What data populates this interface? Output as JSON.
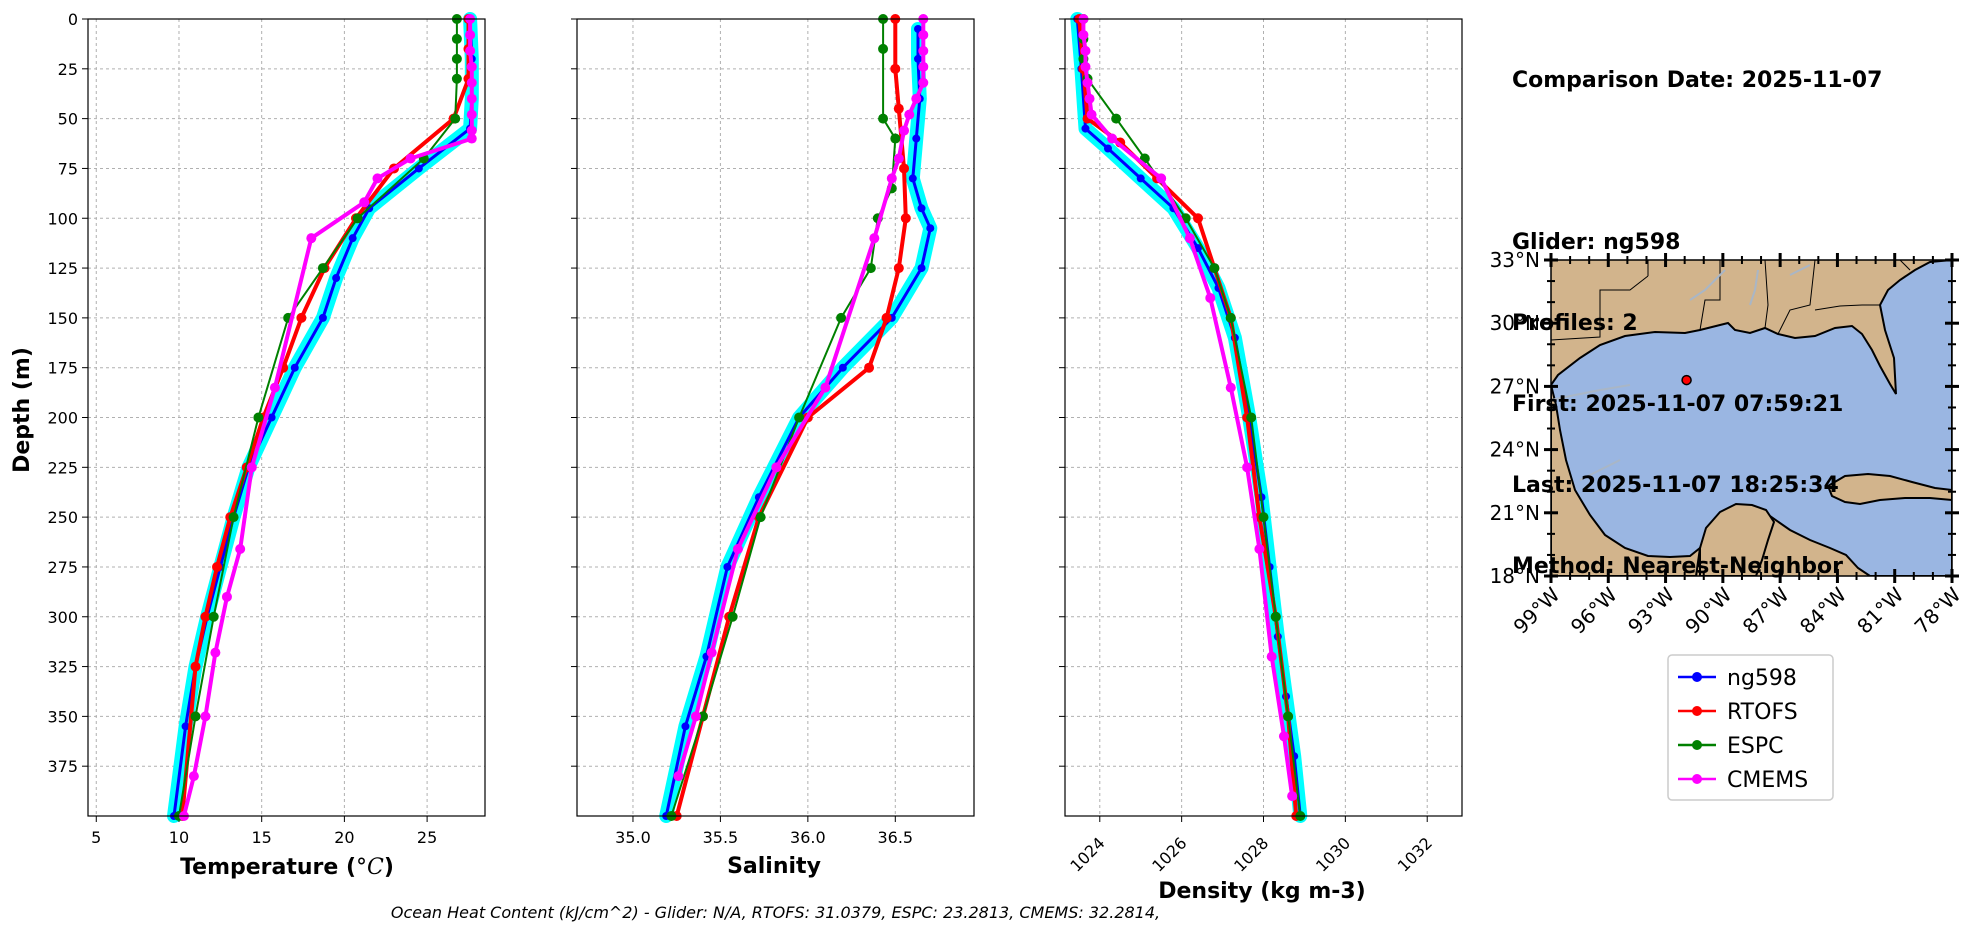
{
  "info": {
    "comparison_date": "Comparison Date: 2025-11-07",
    "glider": "Glider: ng598",
    "profiles": "Profiles: 2",
    "first": "First: 2025-11-07 07:59:21",
    "last": "Last: 2025-11-07 18:25:34",
    "method": "Method: Nearest-Neighbor"
  },
  "footer": "Ocean Heat Content (kJ/cm^2) - Glider: N/A,  RTOFS: 31.0379,  ESPC: 23.2813,  CMEMS: 32.2814,",
  "colors": {
    "ng598": "#0000ff",
    "ng598_spread": "#00ffff",
    "RTOFS": "#ff0000",
    "ESPC": "#008000",
    "CMEMS": "#ff00ff",
    "land": "#d2b48c",
    "ocean": "#9ab6e2"
  },
  "legend": [
    "ng598",
    "RTOFS",
    "ESPC",
    "CMEMS"
  ],
  "chart_data": [
    {
      "type": "line",
      "xlabel_main": "Temperature (",
      "xlabel_unit": "°C",
      "xlabel_end": ")",
      "ylabel": "Depth (m)",
      "xlim": [
        4.5,
        28.5
      ],
      "ylim": [
        400,
        0
      ],
      "xticks": [
        5,
        10,
        15,
        20,
        25
      ],
      "yticks": [
        0,
        25,
        50,
        75,
        100,
        125,
        150,
        175,
        200,
        225,
        250,
        275,
        300,
        325,
        350,
        375
      ],
      "grid": true,
      "series": [
        {
          "name": "ng598",
          "x": [
            27.6,
            27.7,
            27.7,
            27.6,
            24.5,
            21.5,
            20.5,
            19.5,
            18.7,
            17.0,
            15.6,
            14.2,
            13.3,
            12.5,
            11.7,
            11.0,
            10.4,
            9.7
          ],
          "y": [
            0,
            20,
            40,
            55,
            75,
            95,
            110,
            130,
            150,
            175,
            200,
            225,
            250,
            275,
            300,
            325,
            355,
            400
          ]
        },
        {
          "name": "RTOFS",
          "x": [
            27.5,
            27.5,
            27.5,
            26.6,
            23.0,
            20.7,
            18.8,
            17.4,
            16.3,
            15.1,
            14.1,
            13.1,
            12.3,
            11.6,
            11.0,
            10.2
          ],
          "y": [
            0,
            15,
            30,
            50,
            75,
            100,
            125,
            150,
            175,
            200,
            225,
            250,
            275,
            300,
            325,
            400
          ]
        },
        {
          "name": "ESPC",
          "x": [
            26.8,
            26.8,
            26.8,
            26.8,
            26.7,
            24.8,
            20.8,
            18.7,
            16.6,
            14.8,
            13.3,
            12.1,
            11.0,
            10.0
          ],
          "y": [
            0,
            10,
            20,
            30,
            50,
            70,
            100,
            125,
            150,
            200,
            250,
            300,
            350,
            400
          ]
        },
        {
          "name": "CMEMS",
          "x": [
            27.6,
            27.6,
            27.6,
            27.7,
            27.7,
            27.7,
            27.7,
            27.7,
            27.7,
            24.0,
            22.0,
            21.2,
            18.0,
            15.8,
            14.4,
            13.7,
            12.9,
            12.2,
            11.6,
            10.9,
            10.3
          ],
          "y": [
            0,
            8,
            16,
            24,
            32,
            40,
            48,
            56,
            60,
            70,
            80,
            92,
            110,
            185,
            225,
            266,
            290,
            318,
            350,
            380,
            400
          ]
        }
      ]
    },
    {
      "type": "line",
      "xlabel": "Salinity",
      "xlim": [
        34.68,
        36.95
      ],
      "ylim": [
        400,
        0
      ],
      "xticks": [
        35.0,
        35.5,
        36.0,
        36.5
      ],
      "xticklabels": [
        "35.0",
        "35.5",
        "36.0",
        "36.5"
      ],
      "grid": true,
      "series": [
        {
          "name": "ng598",
          "x": [
            36.63,
            36.63,
            36.64,
            36.62,
            36.6,
            36.65,
            36.7,
            36.65,
            36.48,
            36.2,
            35.95,
            35.72,
            35.54,
            35.42,
            35.3,
            35.19
          ],
          "y": [
            5,
            20,
            40,
            60,
            80,
            95,
            105,
            125,
            150,
            175,
            200,
            240,
            275,
            320,
            355,
            400
          ]
        },
        {
          "name": "RTOFS",
          "x": [
            36.5,
            36.5,
            36.52,
            36.55,
            36.56,
            36.52,
            36.45,
            36.35,
            36.0,
            35.72,
            35.55,
            35.4,
            35.25
          ],
          "y": [
            0,
            25,
            45,
            75,
            100,
            125,
            150,
            175,
            200,
            250,
            300,
            350,
            400
          ]
        },
        {
          "name": "ESPC",
          "x": [
            36.43,
            36.43,
            36.43,
            36.5,
            36.48,
            36.4,
            36.36,
            36.19,
            35.95,
            35.73,
            35.57,
            35.4,
            35.22
          ],
          "y": [
            0,
            15,
            50,
            60,
            85,
            100,
            125,
            150,
            200,
            250,
            300,
            350,
            400
          ]
        },
        {
          "name": "CMEMS",
          "x": [
            36.66,
            36.66,
            36.66,
            36.66,
            36.66,
            36.62,
            36.58,
            36.55,
            36.52,
            36.48,
            36.38,
            36.1,
            35.82,
            35.6,
            35.45,
            35.36,
            35.26
          ],
          "y": [
            0,
            8,
            16,
            24,
            32,
            40,
            48,
            56,
            70,
            80,
            110,
            185,
            225,
            266,
            318,
            350,
            380
          ]
        }
      ]
    },
    {
      "type": "line",
      "xlabel": "Density (kg m-3)",
      "xlim": [
        1023.15,
        1032.85
      ],
      "ylim": [
        400,
        0
      ],
      "xticks": [
        1024,
        1026,
        1028,
        1030,
        1032
      ],
      "grid": true,
      "series": [
        {
          "name": "ng598",
          "x": [
            1023.45,
            1023.55,
            1023.65,
            1024.2,
            1025.0,
            1025.8,
            1026.4,
            1026.9,
            1027.3,
            1027.65,
            1027.95,
            1028.15,
            1028.35,
            1028.55,
            1028.75,
            1028.9
          ],
          "y": [
            0,
            25,
            55,
            65,
            80,
            95,
            115,
            135,
            160,
            200,
            240,
            275,
            310,
            340,
            370,
            400
          ]
        },
        {
          "name": "RTOFS",
          "x": [
            1023.5,
            1023.6,
            1023.7,
            1024.5,
            1025.4,
            1026.4,
            1026.8,
            1027.2,
            1027.6,
            1027.9,
            1028.3,
            1028.6,
            1028.8
          ],
          "y": [
            0,
            25,
            50,
            62,
            80,
            100,
            125,
            150,
            200,
            250,
            300,
            350,
            400
          ]
        },
        {
          "name": "ESPC",
          "x": [
            1023.6,
            1023.6,
            1023.6,
            1023.7,
            1024.4,
            1025.1,
            1026.1,
            1026.8,
            1027.2,
            1027.7,
            1028.0,
            1028.3,
            1028.6,
            1028.9
          ],
          "y": [
            0,
            10,
            20,
            30,
            50,
            70,
            100,
            125,
            150,
            200,
            250,
            300,
            350,
            400
          ]
        },
        {
          "name": "CMEMS",
          "x": [
            1023.6,
            1023.6,
            1023.65,
            1023.65,
            1023.7,
            1023.75,
            1023.8,
            1024.3,
            1025.5,
            1026.2,
            1026.7,
            1027.2,
            1027.6,
            1027.9,
            1028.2,
            1028.5,
            1028.7
          ],
          "y": [
            0,
            8,
            16,
            24,
            32,
            40,
            48,
            60,
            80,
            110,
            140,
            185,
            225,
            266,
            320,
            360,
            390
          ]
        }
      ]
    }
  ],
  "map": {
    "lat_labels": [
      "33°N",
      "30°N",
      "27°N",
      "24°N",
      "21°N",
      "18°N"
    ],
    "lon_labels": [
      "99°W",
      "96°W",
      "93°W",
      "90°W",
      "87°W",
      "84°W",
      "81°W",
      "78°W"
    ],
    "lat_range": [
      18,
      33
    ],
    "lon_range": [
      -99,
      -78
    ],
    "glider_position": {
      "lon": -91.9,
      "lat": 27.3
    }
  }
}
